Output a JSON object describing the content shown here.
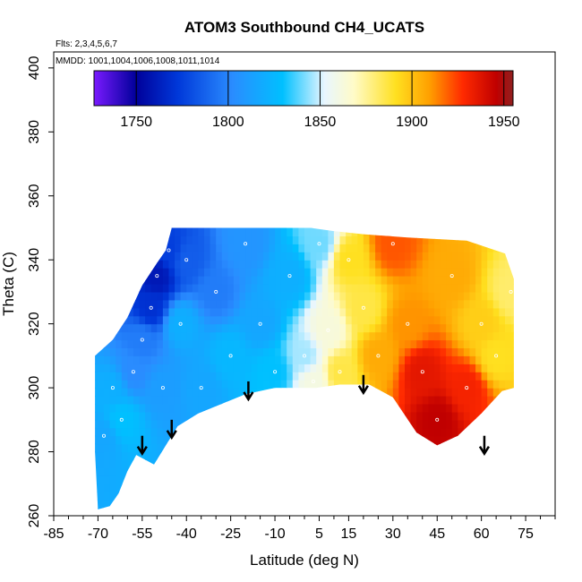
{
  "chart_data": {
    "type": "heatmap",
    "title": "ATOM3 Southbound CH4_UCATS",
    "subtitle_flights": "Flts: 2,3,4,5,6,7",
    "subtitle_dates": "MMDD: 1001,1004,1006,1008,1011,1014",
    "xlabel": "Latitude (deg N)",
    "ylabel": "Theta (C)",
    "xlim": [
      -85,
      85
    ],
    "ylim": [
      260,
      405
    ],
    "x_tick_values": [
      -85,
      -70,
      -55,
      -40,
      -25,
      -10,
      5,
      15,
      30,
      45,
      60,
      75
    ],
    "x_tick_labels": [
      "-85",
      "-70",
      "-55",
      "-40",
      "-25",
      "-10",
      "5",
      "15",
      "30",
      "45",
      "60",
      "75"
    ],
    "y_tick_values": [
      260,
      280,
      300,
      320,
      340,
      360,
      380,
      400
    ],
    "y_tick_labels": [
      "260",
      "280",
      "300",
      "320",
      "340",
      "360",
      "380",
      "400"
    ],
    "colorbar": {
      "range": [
        1727,
        1955
      ],
      "tick_values": [
        1750,
        1800,
        1850,
        1900,
        1950
      ],
      "tick_labels": [
        "1750",
        "1800",
        "1850",
        "1900",
        "1950"
      ]
    },
    "arrows": [
      {
        "lat": -55,
        "theta": 285
      },
      {
        "lat": -45,
        "theta": 290
      },
      {
        "lat": -19,
        "theta": 302
      },
      {
        "lat": 20,
        "theta": 304
      },
      {
        "lat": 61,
        "theta": 285
      }
    ],
    "boundary": {
      "upper": [
        [
          -71,
          301
        ],
        [
          -71,
          310
        ],
        [
          -65,
          315
        ],
        [
          -60,
          322
        ],
        [
          -55,
          332
        ],
        [
          -50,
          339
        ],
        [
          -47,
          343
        ],
        [
          -45,
          350
        ],
        [
          2,
          350
        ],
        [
          10,
          349
        ],
        [
          20,
          348
        ],
        [
          35,
          347
        ],
        [
          55,
          346
        ],
        [
          68,
          342
        ],
        [
          71,
          334
        ]
      ],
      "lower": [
        [
          71,
          300
        ],
        [
          67,
          299
        ],
        [
          60,
          292
        ],
        [
          52,
          285
        ],
        [
          45,
          282
        ],
        [
          38,
          286
        ],
        [
          30,
          297
        ],
        [
          22,
          301
        ],
        [
          12,
          301
        ],
        [
          4,
          300
        ],
        [
          -10,
          300
        ],
        [
          -20,
          298
        ],
        [
          -28,
          295
        ],
        [
          -36,
          292
        ],
        [
          -43,
          288
        ],
        [
          -47,
          282
        ],
        [
          -51,
          276
        ],
        [
          -57,
          279
        ],
        [
          -60,
          274
        ],
        [
          -63,
          267
        ],
        [
          -66,
          263
        ],
        [
          -70,
          262
        ],
        [
          -71,
          280
        ]
      ]
    },
    "field_samples": [
      {
        "lat": -68,
        "theta": 285,
        "ch4": 1815
      },
      {
        "lat": -65,
        "theta": 300,
        "ch4": 1820
      },
      {
        "lat": -62,
        "theta": 290,
        "ch4": 1830
      },
      {
        "lat": -58,
        "theta": 305,
        "ch4": 1800
      },
      {
        "lat": -55,
        "theta": 315,
        "ch4": 1795
      },
      {
        "lat": -52,
        "theta": 325,
        "ch4": 1770
      },
      {
        "lat": -50,
        "theta": 335,
        "ch4": 1760
      },
      {
        "lat": -48,
        "theta": 300,
        "ch4": 1810
      },
      {
        "lat": -46,
        "theta": 343,
        "ch4": 1775
      },
      {
        "lat": -42,
        "theta": 320,
        "ch4": 1820
      },
      {
        "lat": -40,
        "theta": 340,
        "ch4": 1785
      },
      {
        "lat": -35,
        "theta": 300,
        "ch4": 1815
      },
      {
        "lat": -30,
        "theta": 330,
        "ch4": 1795
      },
      {
        "lat": -25,
        "theta": 310,
        "ch4": 1825
      },
      {
        "lat": -20,
        "theta": 345,
        "ch4": 1805
      },
      {
        "lat": -15,
        "theta": 320,
        "ch4": 1815
      },
      {
        "lat": -10,
        "theta": 305,
        "ch4": 1830
      },
      {
        "lat": -5,
        "theta": 335,
        "ch4": 1820
      },
      {
        "lat": 0,
        "theta": 310,
        "ch4": 1845
      },
      {
        "lat": 3,
        "theta": 302,
        "ch4": 1860
      },
      {
        "lat": 5,
        "theta": 345,
        "ch4": 1840
      },
      {
        "lat": 8,
        "theta": 318,
        "ch4": 1862
      },
      {
        "lat": 12,
        "theta": 305,
        "ch4": 1885
      },
      {
        "lat": 15,
        "theta": 340,
        "ch4": 1890
      },
      {
        "lat": 20,
        "theta": 325,
        "ch4": 1885
      },
      {
        "lat": 25,
        "theta": 310,
        "ch4": 1905
      },
      {
        "lat": 30,
        "theta": 345,
        "ch4": 1920
      },
      {
        "lat": 35,
        "theta": 320,
        "ch4": 1910
      },
      {
        "lat": 40,
        "theta": 305,
        "ch4": 1935
      },
      {
        "lat": 45,
        "theta": 290,
        "ch4": 1945
      },
      {
        "lat": 50,
        "theta": 335,
        "ch4": 1905
      },
      {
        "lat": 55,
        "theta": 300,
        "ch4": 1930
      },
      {
        "lat": 60,
        "theta": 320,
        "ch4": 1895
      },
      {
        "lat": 65,
        "theta": 310,
        "ch4": 1890
      },
      {
        "lat": 70,
        "theta": 330,
        "ch4": 1880
      }
    ]
  }
}
